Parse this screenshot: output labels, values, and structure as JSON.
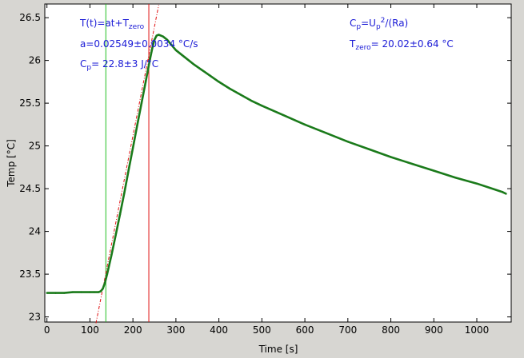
{
  "chart_data": {
    "type": "line",
    "title": "",
    "xlabel": "Time [s]",
    "ylabel": "Temp [°C]",
    "xlim": [
      -5,
      1080
    ],
    "ylim": [
      22.94,
      26.66
    ],
    "x_ticks": [
      0,
      100,
      200,
      300,
      400,
      500,
      600,
      700,
      800,
      900,
      1000
    ],
    "y_ticks": [
      23,
      23.5,
      24,
      24.5,
      25,
      25.5,
      26,
      26.5
    ],
    "x_tick_labels": [
      "0",
      "100",
      "200",
      "300",
      "400",
      "500",
      "600",
      "700",
      "800",
      "900",
      "1000"
    ],
    "y_tick_labels": [
      "23",
      "23.5",
      "24",
      "24.5",
      "25",
      "25.5",
      "26",
      "26.5"
    ],
    "grid": false,
    "series": [
      {
        "color": "#1a7a1a",
        "x": [
          0,
          20,
          40,
          60,
          80,
          100,
          110,
          120,
          125,
          130,
          135,
          140,
          150,
          160,
          170,
          180,
          190,
          200,
          210,
          220,
          230,
          240,
          245,
          250,
          255,
          260,
          265,
          270,
          280,
          290,
          300,
          320,
          340,
          360,
          380,
          400,
          425,
          450,
          475,
          500,
          550,
          600,
          650,
          700,
          750,
          800,
          850,
          900,
          950,
          1000,
          1030,
          1060,
          1068
        ],
        "y": [
          23.28,
          23.28,
          23.28,
          23.29,
          23.29,
          23.29,
          23.29,
          23.29,
          23.3,
          23.33,
          23.4,
          23.5,
          23.72,
          23.96,
          24.2,
          24.45,
          24.72,
          24.98,
          25.24,
          25.5,
          25.76,
          26.02,
          26.14,
          26.24,
          26.29,
          26.3,
          26.29,
          26.28,
          26.24,
          26.18,
          26.12,
          26.04,
          25.96,
          25.89,
          25.82,
          25.75,
          25.67,
          25.6,
          25.53,
          25.47,
          25.36,
          25.25,
          25.15,
          25.05,
          24.96,
          24.87,
          24.79,
          24.71,
          24.63,
          24.56,
          24.51,
          24.46,
          24.44
        ]
      }
    ],
    "reference_lines": [
      {
        "type": "vertical",
        "x": 137,
        "color": "#22c022"
      },
      {
        "type": "vertical",
        "x": 237,
        "color": "#e01010"
      }
    ],
    "fit_line": {
      "slope": 0.02549,
      "intercept": 20.02,
      "x_start": 114,
      "x_end": 260,
      "color": "#e01010",
      "style": "dash-dot"
    },
    "annotations": {
      "formula_base": "T(t)=at+T",
      "formula_sub": "zero",
      "slope_text": "a=0.02549±0.0034 °C/s",
      "cp_lhs_base": "C",
      "cp_lhs_sub": "p",
      "cp_value_text": "= 22.8±3 J/°C",
      "cp_def_base": "C",
      "cp_def_sub": "p",
      "cp_def_mid": "=U",
      "cp_def_sub2": "p",
      "cp_def_sup": "2",
      "cp_def_tail": "/(Ra)",
      "tzero_base": "T",
      "tzero_sub": "zero",
      "tzero_value_text": "= 20.02±0.64 °C"
    }
  }
}
